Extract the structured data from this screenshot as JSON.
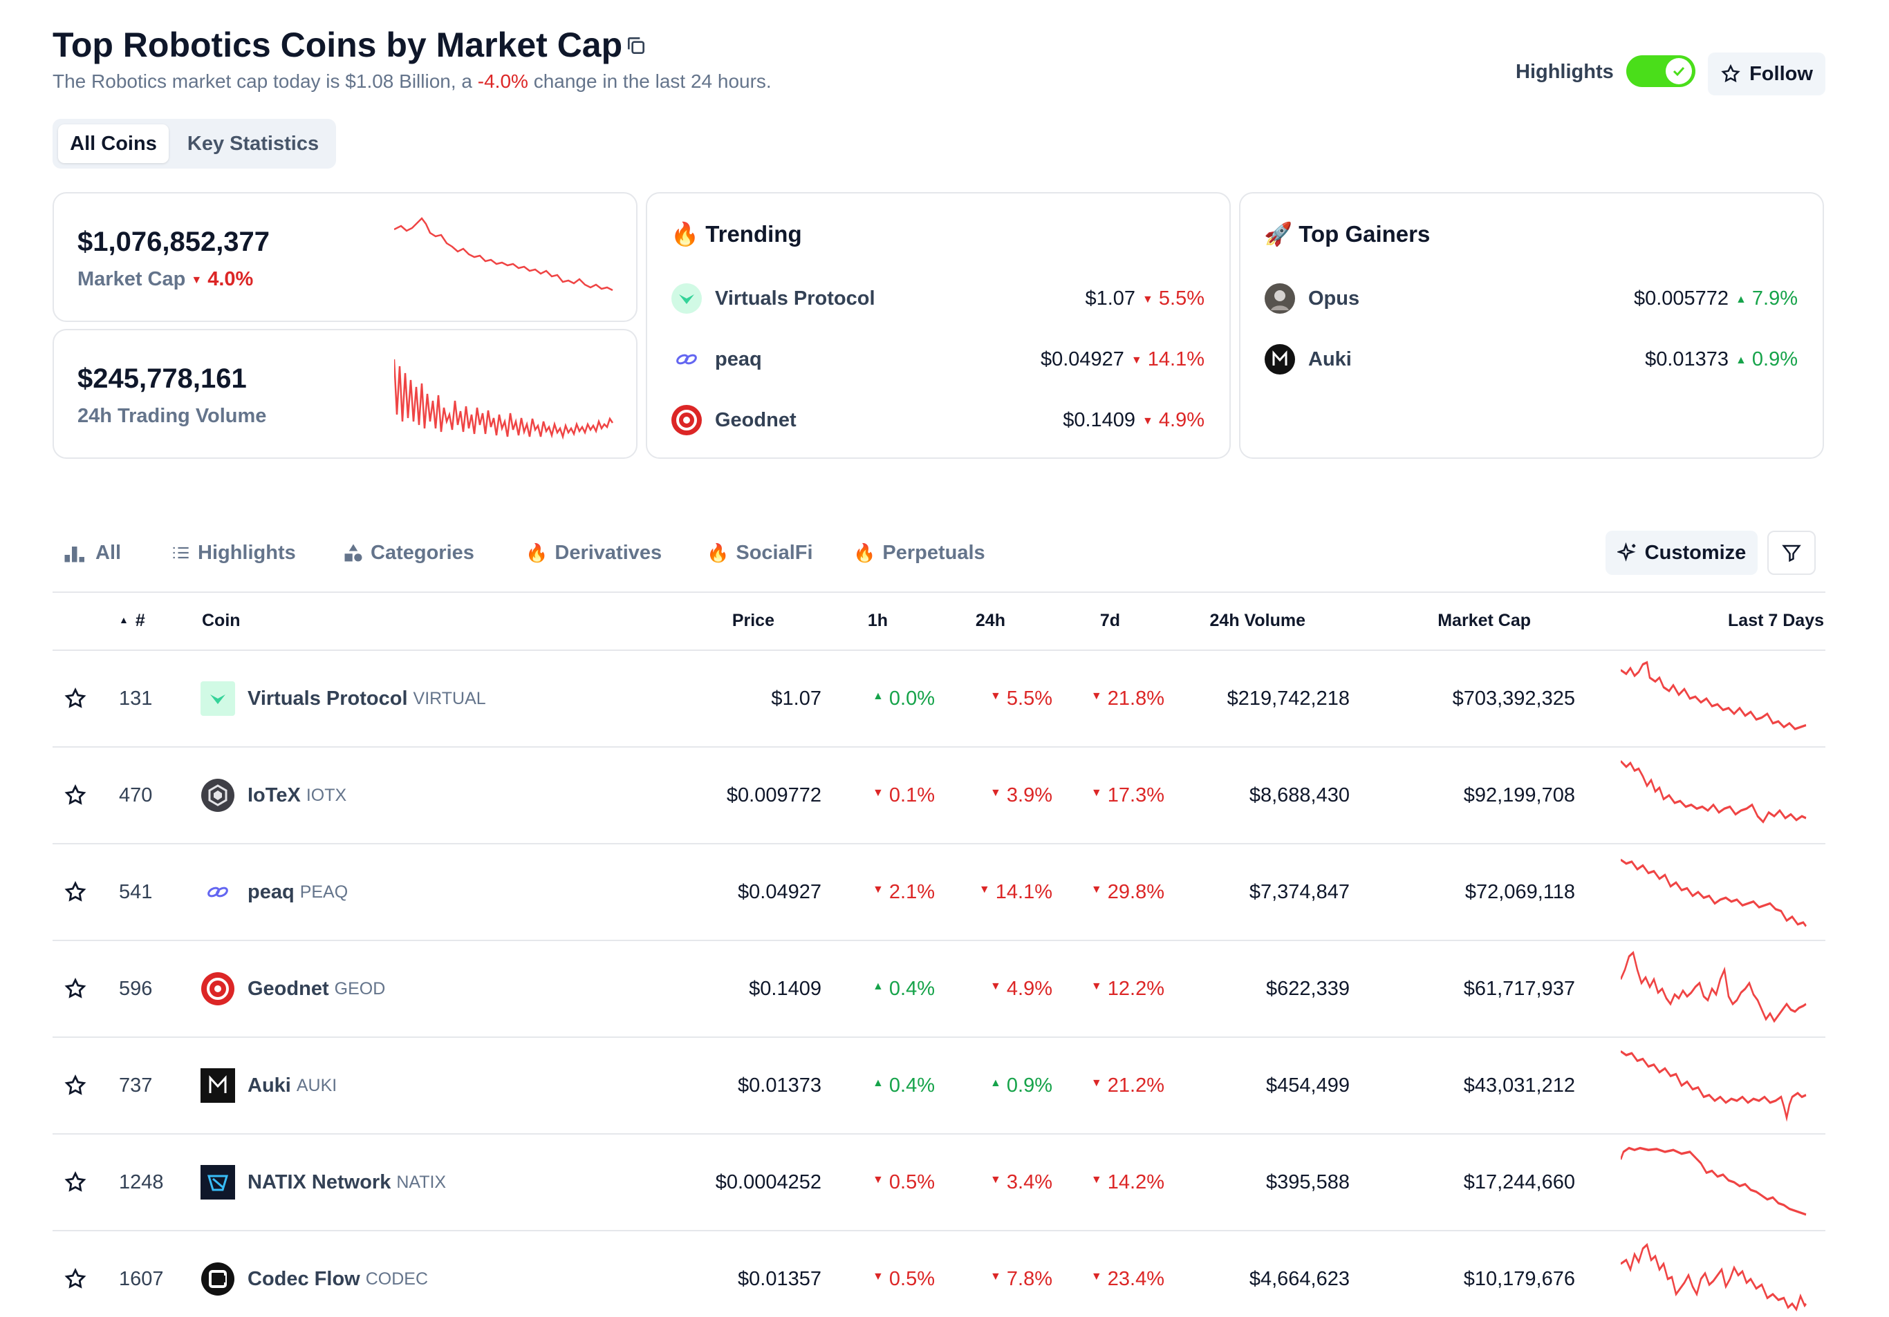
{
  "header": {
    "title": "Top Robotics Coins by Market Cap",
    "subtitle_prefix": "The Robotics market cap today is $1.08 Billion, a",
    "subtitle_change": "-4.0%",
    "subtitle_suffix": "change in the last 24 hours.",
    "highlights_label": "Highlights",
    "highlights_on": true,
    "follow_label": "Follow"
  },
  "view_tabs": [
    {
      "label": "All Coins",
      "active": true
    },
    {
      "label": "Key Statistics",
      "active": false
    }
  ],
  "market_cap_card": {
    "value": "$1,076,852,377",
    "label": "Market Cap",
    "change": "4.0%",
    "direction": "down"
  },
  "volume_card": {
    "value": "$245,778,161",
    "label": "24h Trading Volume"
  },
  "trending": {
    "title": "Trending",
    "items": [
      {
        "name": "Virtuals Protocol",
        "price": "$1.07",
        "change": "5.5%",
        "direction": "down",
        "icon": "virtuals-protocol-logo"
      },
      {
        "name": "peaq",
        "price": "$0.04927",
        "change": "14.1%",
        "direction": "down",
        "icon": "peaq-logo"
      },
      {
        "name": "Geodnet",
        "price": "$0.1409",
        "change": "4.9%",
        "direction": "down",
        "icon": "geodnet-logo"
      }
    ]
  },
  "top_gainers": {
    "title": "Top Gainers",
    "items": [
      {
        "name": "Opus",
        "price": "$0.005772",
        "change": "7.9%",
        "direction": "up",
        "icon": "opus-logo"
      },
      {
        "name": "Auki",
        "price": "$0.01373",
        "change": "0.9%",
        "direction": "up",
        "icon": "auki-logo"
      }
    ]
  },
  "filter_tabs": [
    {
      "label": "All",
      "icon": "bar-chart-icon"
    },
    {
      "label": "Highlights",
      "icon": "list-icon"
    },
    {
      "label": "Categories",
      "icon": "shapes-icon"
    },
    {
      "label": "Derivatives",
      "icon": "fire-icon"
    },
    {
      "label": "SocialFi",
      "icon": "fire-icon"
    },
    {
      "label": "Perpetuals",
      "icon": "fire-icon"
    }
  ],
  "customize_label": "Customize",
  "table": {
    "headers": {
      "rank": "#",
      "coin": "Coin",
      "price": "Price",
      "h1": "1h",
      "h24": "24h",
      "d7": "7d",
      "volume": "24h Volume",
      "market_cap": "Market Cap",
      "last7": "Last 7 Days"
    },
    "rows": [
      {
        "rank": "131",
        "name": "Virtuals Protocol",
        "symbol": "VIRTUAL",
        "price": "$1.07",
        "h1": "0.0%",
        "h1_dir": "up",
        "h24": "5.5%",
        "h24_dir": "down",
        "d7": "21.8%",
        "d7_dir": "down",
        "volume": "$219,742,218",
        "market_cap": "$703,392,325",
        "icon": "virtuals-protocol-logo"
      },
      {
        "rank": "470",
        "name": "IoTeX",
        "symbol": "IOTX",
        "price": "$0.009772",
        "h1": "0.1%",
        "h1_dir": "down",
        "h24": "3.9%",
        "h24_dir": "down",
        "d7": "17.3%",
        "d7_dir": "down",
        "volume": "$8,688,430",
        "market_cap": "$92,199,708",
        "icon": "iotex-logo"
      },
      {
        "rank": "541",
        "name": "peaq",
        "symbol": "PEAQ",
        "price": "$0.04927",
        "h1": "2.1%",
        "h1_dir": "down",
        "h24": "14.1%",
        "h24_dir": "down",
        "d7": "29.8%",
        "d7_dir": "down",
        "volume": "$7,374,847",
        "market_cap": "$72,069,118",
        "icon": "peaq-logo"
      },
      {
        "rank": "596",
        "name": "Geodnet",
        "symbol": "GEOD",
        "price": "$0.1409",
        "h1": "0.4%",
        "h1_dir": "up",
        "h24": "4.9%",
        "h24_dir": "down",
        "d7": "12.2%",
        "d7_dir": "down",
        "volume": "$622,339",
        "market_cap": "$61,717,937",
        "icon": "geodnet-logo"
      },
      {
        "rank": "737",
        "name": "Auki",
        "symbol": "AUKI",
        "price": "$0.01373",
        "h1": "0.4%",
        "h1_dir": "up",
        "h24": "0.9%",
        "h24_dir": "up",
        "d7": "21.2%",
        "d7_dir": "down",
        "volume": "$454,499",
        "market_cap": "$43,031,212",
        "icon": "auki-logo"
      },
      {
        "rank": "1248",
        "name": "NATIX Network",
        "symbol": "NATIX",
        "price": "$0.0004252",
        "h1": "0.5%",
        "h1_dir": "down",
        "h24": "3.4%",
        "h24_dir": "down",
        "d7": "14.2%",
        "d7_dir": "down",
        "volume": "$395,588",
        "market_cap": "$17,244,660",
        "icon": "natix-logo"
      },
      {
        "rank": "1607",
        "name": "Codec Flow",
        "symbol": "CODEC",
        "price": "$0.01357",
        "h1": "0.5%",
        "h1_dir": "down",
        "h24": "7.8%",
        "h24_dir": "down",
        "d7": "23.4%",
        "d7_dir": "down",
        "volume": "$4,664,623",
        "market_cap": "$10,179,676",
        "icon": "codec-flow-logo"
      }
    ]
  },
  "colors": {
    "up": "#16a34a",
    "down": "#dc2626",
    "spark": "#ef4444",
    "toggle": "#4ade1a"
  }
}
